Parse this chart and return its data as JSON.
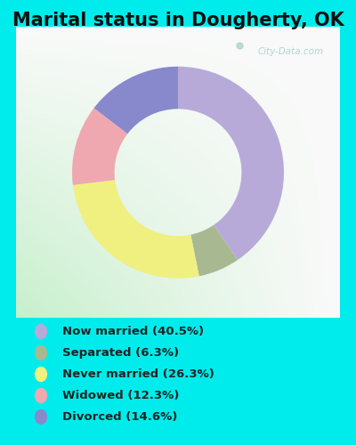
{
  "title": "Marital status in Dougherty, OK",
  "categories": [
    "Now married",
    "Separated",
    "Never married",
    "Widowed",
    "Divorced"
  ],
  "values": [
    40.5,
    6.3,
    26.3,
    12.3,
    14.6
  ],
  "colors": [
    "#b8aad8",
    "#a8b890",
    "#f0f080",
    "#f0a8b0",
    "#8888cc"
  ],
  "legend_colors": [
    "#b8aad8",
    "#a8b890",
    "#f0f080",
    "#f0a8b0",
    "#8888cc"
  ],
  "legend_labels": [
    "Now married (40.5%)",
    "Separated (6.3%)",
    "Never married (26.3%)",
    "Widowed (12.3%)",
    "Divorced (14.6%)"
  ],
  "bg_outer": "#00ecec",
  "bg_chart_top": "#e8f4f0",
  "bg_chart_bottom": "#c8e8d0",
  "title_fontsize": 15,
  "start_angle": 90,
  "watermark": "City-Data.com"
}
